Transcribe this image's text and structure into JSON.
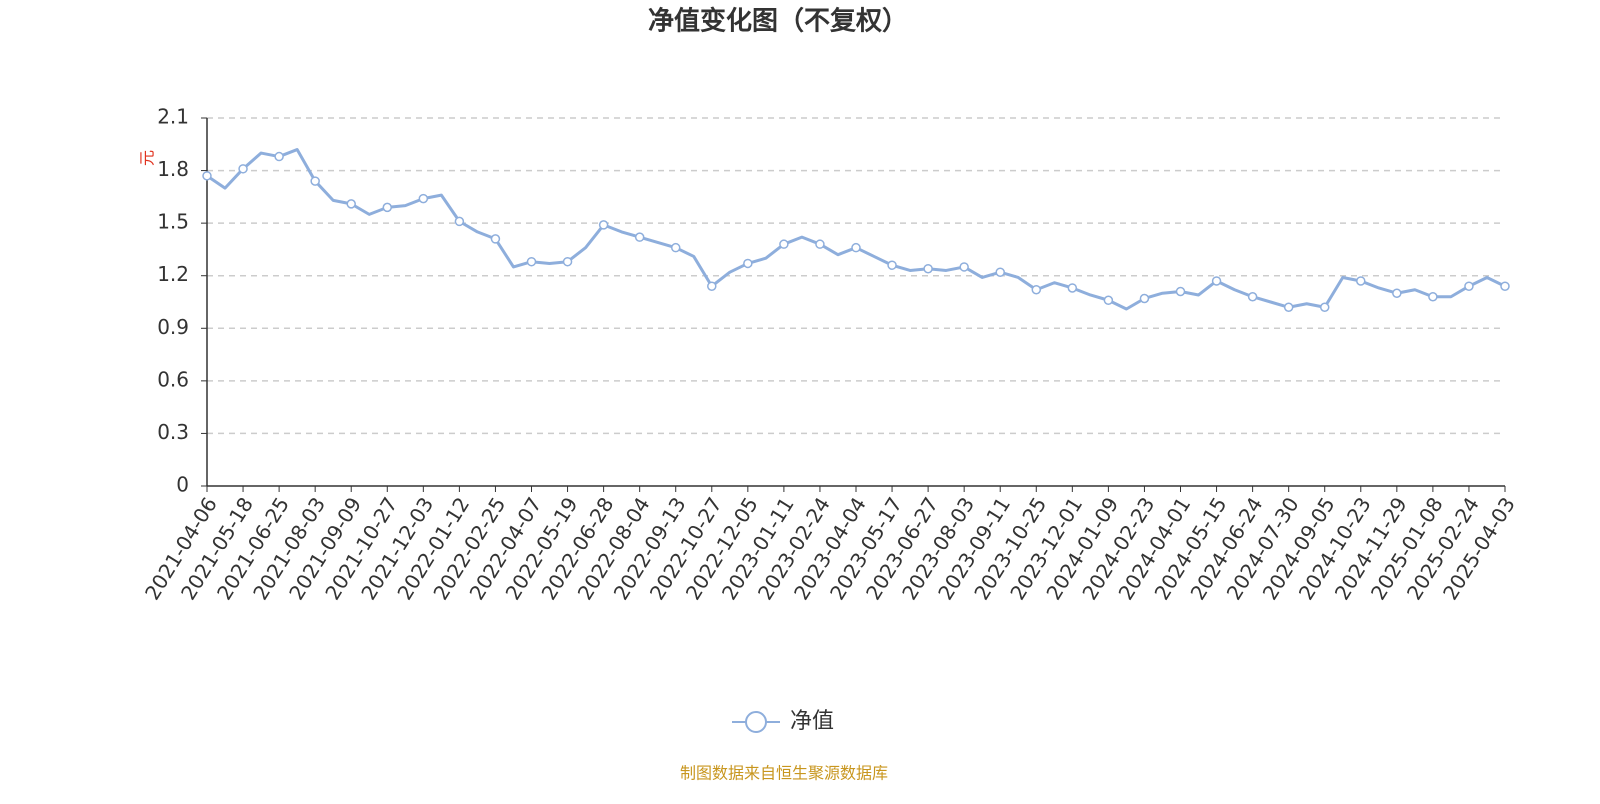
{
  "chart_data": {
    "type": "line",
    "title": "净值变化图（不复权）",
    "y_label": "元",
    "categories": [
      "2021-04-06",
      null,
      "2021-05-18",
      null,
      "2021-06-25",
      null,
      "2021-08-03",
      null,
      "2021-09-09",
      null,
      "2021-10-27",
      null,
      "2021-12-03",
      null,
      "2022-01-12",
      null,
      "2022-02-25",
      null,
      "2022-04-07",
      null,
      "2022-05-19",
      null,
      "2022-06-28",
      null,
      "2022-08-04",
      null,
      "2022-09-13",
      null,
      "2022-10-27",
      null,
      "2022-12-05",
      null,
      "2023-01-11",
      null,
      "2023-02-24",
      null,
      "2023-04-04",
      null,
      "2023-05-17",
      null,
      "2023-06-27",
      null,
      "2023-08-03",
      null,
      "2023-09-11",
      null,
      "2023-10-25",
      null,
      "2023-12-01",
      null,
      "2024-01-09",
      null,
      "2024-02-23",
      null,
      "2024-04-01",
      null,
      "2024-05-15",
      null,
      "2024-06-24",
      null,
      "2024-07-30",
      null,
      "2024-09-05",
      null,
      "2024-10-23",
      null,
      "2024-11-29",
      null,
      "2025-01-08",
      null,
      "2025-02-24",
      null,
      "2025-04-03"
    ],
    "series": [
      {
        "name": "净值",
        "color": "#8eaedc",
        "values": [
          1.77,
          1.7,
          1.81,
          1.9,
          1.88,
          1.92,
          1.74,
          1.63,
          1.61,
          1.55,
          1.59,
          1.6,
          1.64,
          1.66,
          1.51,
          1.45,
          1.41,
          1.25,
          1.28,
          1.27,
          1.28,
          1.36,
          1.49,
          1.45,
          1.42,
          1.39,
          1.36,
          1.31,
          1.14,
          1.22,
          1.27,
          1.3,
          1.38,
          1.42,
          1.38,
          1.32,
          1.36,
          1.31,
          1.26,
          1.23,
          1.24,
          1.23,
          1.25,
          1.19,
          1.22,
          1.19,
          1.12,
          1.16,
          1.13,
          1.09,
          1.06,
          1.01,
          1.07,
          1.1,
          1.11,
          1.09,
          1.17,
          1.12,
          1.08,
          1.05,
          1.02,
          1.04,
          1.02,
          1.19,
          1.17,
          1.13,
          1.1,
          1.12,
          1.08,
          1.08,
          1.14,
          1.19,
          1.14
        ]
      }
    ],
    "ylim": [
      0,
      2.1
    ],
    "yticks": [
      0,
      0.3,
      0.6,
      0.9,
      1.2,
      1.5,
      1.8,
      2.1
    ],
    "grid": true,
    "legend": "bottom",
    "source": "制图数据来自恒生聚源数据库"
  }
}
